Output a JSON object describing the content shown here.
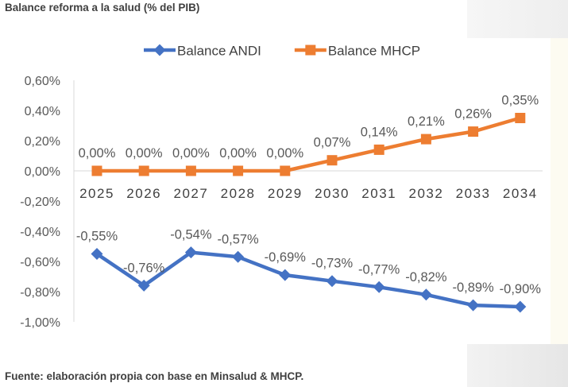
{
  "page_title": "Balance reforma a la salud (% del PIB)",
  "source_note": "Fuente: elaboración propia con base en Minsalud & MHCP.",
  "chart_data": {
    "type": "line",
    "title": "",
    "x": [
      "2025",
      "2026",
      "2027",
      "2028",
      "2029",
      "2030",
      "2031",
      "2032",
      "2033",
      "2034"
    ],
    "ylim": [
      -1.0,
      0.6
    ],
    "ytick_labels": [
      "0,60%",
      "0,40%",
      "0,20%",
      "0,00%",
      "-0,20%",
      "-0,40%",
      "-0,60%",
      "-0,80%",
      "-1,00%"
    ],
    "legend_position": "top",
    "grid": false,
    "series": [
      {
        "name": "Balance ANDI",
        "color": "#4472C4",
        "marker": "diamond",
        "values": [
          -0.55,
          -0.76,
          -0.54,
          -0.57,
          -0.69,
          -0.73,
          -0.77,
          -0.82,
          -0.89,
          -0.9
        ],
        "labels": [
          "-0,55%",
          "-0,76%",
          "-0,54%",
          "-0,57%",
          "-0,69%",
          "-0,73%",
          "-0,77%",
          "-0,82%",
          "-0,89%",
          "-0,90%"
        ]
      },
      {
        "name": "Balance MHCP",
        "color": "#ED7D31",
        "marker": "square",
        "values": [
          0.0,
          0.0,
          0.0,
          0.0,
          0.0,
          0.07,
          0.14,
          0.21,
          0.26,
          0.35
        ],
        "labels": [
          "0,00%",
          "0,00%",
          "0,00%",
          "0,00%",
          "0,00%",
          "0,07%",
          "0,14%",
          "0,21%",
          "0,26%",
          "0,35%"
        ]
      }
    ]
  }
}
